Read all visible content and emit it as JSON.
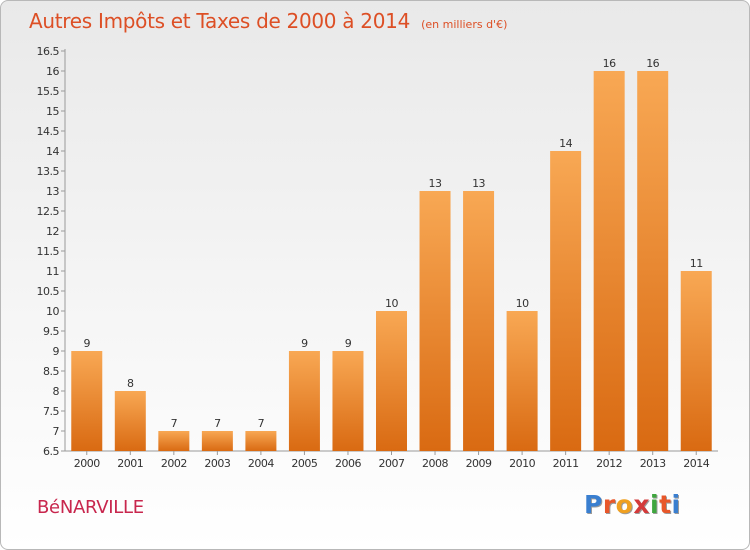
{
  "title": "Autres Impôts et Taxes de 2000 à 2014",
  "subtitle": "(en milliers d'€)",
  "city": "BéNARVILLE",
  "logo": {
    "text": "Proxiti",
    "colors": [
      "#3a7fd0",
      "#e8572a",
      "#f0a020",
      "#d43a3a",
      "#3fa63f",
      "#e8572a",
      "#3a7fd0"
    ]
  },
  "chart_data": {
    "type": "bar",
    "categories": [
      "2000",
      "2001",
      "2002",
      "2003",
      "2004",
      "2005",
      "2006",
      "2007",
      "2008",
      "2009",
      "2010",
      "2011",
      "2012",
      "2013",
      "2014"
    ],
    "values": [
      9,
      8,
      7,
      7,
      7,
      9,
      9,
      10,
      13,
      13,
      10,
      14,
      16,
      16,
      11
    ],
    "data_labels": [
      "9",
      "8",
      "7",
      "7",
      "7",
      "9",
      "9",
      "10",
      "13",
      "13",
      "10",
      "14",
      "16",
      "16",
      "11"
    ],
    "title": "Autres Impôts et Taxes de 2000 à 2014",
    "ylim": [
      6.5,
      16.5
    ],
    "yticks": [
      6.5,
      7,
      7.5,
      8,
      8.5,
      9,
      9.5,
      10,
      10.5,
      11,
      11.5,
      12,
      12.5,
      13,
      13.5,
      14,
      14.5,
      15,
      15.5,
      16,
      16.5
    ],
    "ytick_labels": [
      "6.5",
      "7",
      "7.5",
      "8",
      "8.5",
      "9",
      "9.5",
      "10",
      "10.5",
      "11",
      "11.5",
      "12",
      "12.5",
      "13",
      "13.5",
      "14",
      "14.5",
      "15",
      "15.5",
      "16",
      "16.5"
    ],
    "bar_color_top": "#f8a854",
    "bar_color_bottom": "#d96a12",
    "grid": false
  }
}
